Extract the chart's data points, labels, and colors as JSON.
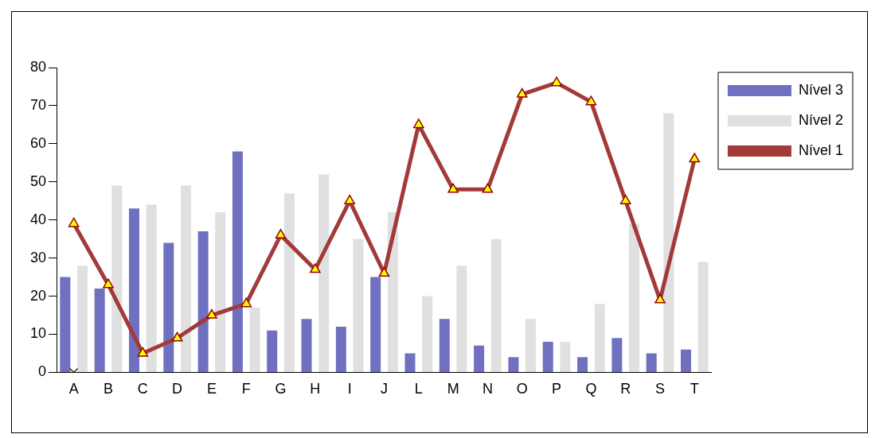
{
  "chart_data": {
    "type": "bar",
    "categories": [
      "A",
      "B",
      "C",
      "D",
      "E",
      "F",
      "G",
      "H",
      "I",
      "J",
      "L",
      "M",
      "N",
      "O",
      "P",
      "Q",
      "R",
      "S",
      "T"
    ],
    "series": [
      {
        "name": "Nível 3",
        "color": "#7070c0",
        "values": [
          25,
          22,
          43,
          34,
          37,
          58,
          11,
          14,
          12,
          25,
          5,
          14,
          7,
          4,
          8,
          4,
          9,
          5,
          6
        ]
      },
      {
        "name": "Nível 2",
        "color": "#e0e0e0",
        "values": [
          28,
          49,
          44,
          49,
          42,
          17,
          47,
          52,
          35,
          42,
          20,
          28,
          35,
          14,
          8,
          18,
          39,
          68,
          29
        ]
      },
      {
        "name": "Nível 1",
        "type": "line",
        "marker": "triangle",
        "color": "#a33a3a",
        "values": [
          39,
          23,
          5,
          9,
          15,
          18,
          36,
          27,
          45,
          26,
          65,
          48,
          48,
          73,
          76,
          71,
          45,
          19,
          56
        ]
      },
      {
        "type": "scatter",
        "marker": "cross",
        "color": "#333300",
        "x": [
          "A"
        ],
        "values": [
          0
        ]
      }
    ],
    "ylim": [
      0,
      80
    ],
    "yticks": [
      0,
      10,
      20,
      30,
      40,
      50,
      60,
      70,
      80
    ],
    "grid": false,
    "legend": "top right"
  }
}
